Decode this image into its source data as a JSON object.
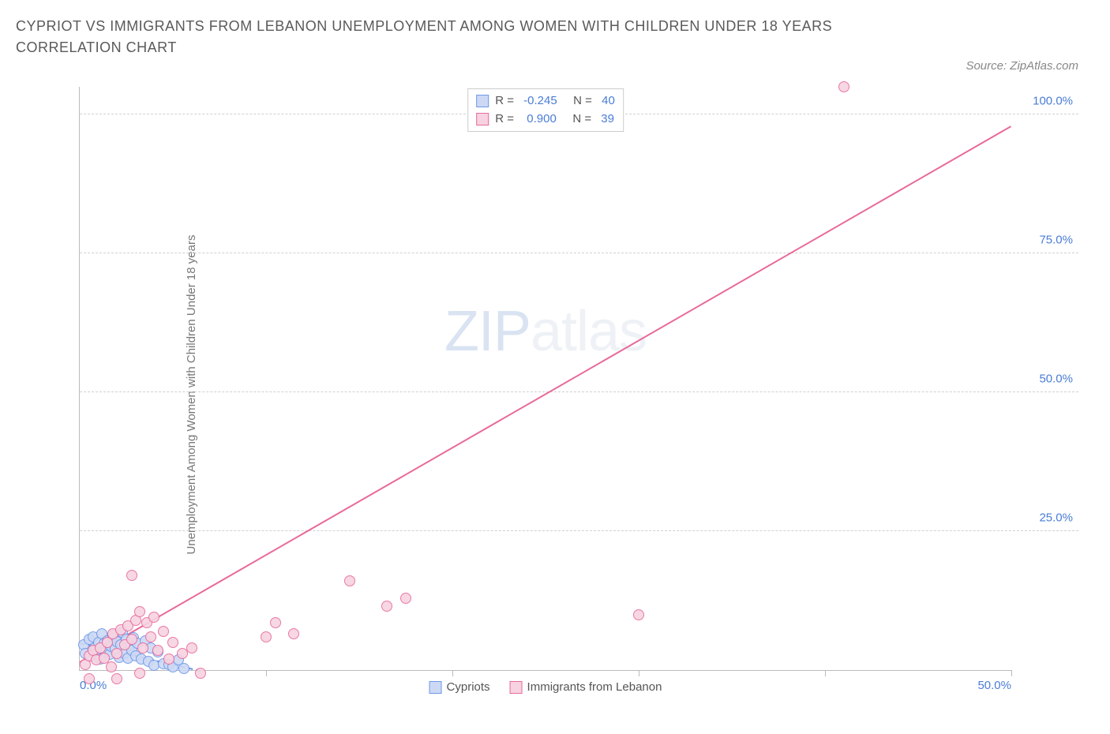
{
  "title": "CYPRIOT VS IMMIGRANTS FROM LEBANON UNEMPLOYMENT AMONG WOMEN WITH CHILDREN UNDER 18 YEARS CORRELATION CHART",
  "source": "Source: ZipAtlas.com",
  "yaxis_label": "Unemployment Among Women with Children Under 18 years",
  "watermark_a": "ZIP",
  "watermark_b": "atlas",
  "chart": {
    "type": "scatter",
    "background_color": "#ffffff",
    "grid_color": "#d0d0d0",
    "axis_color": "#bbbbbb",
    "label_color": "#4a7dd6",
    "label_fontsize": 15,
    "xlim": [
      0,
      50
    ],
    "ylim": [
      0,
      105
    ],
    "xtick_positions": [
      0,
      10,
      20,
      30,
      40,
      50
    ],
    "xtick_labels": [
      "0.0%",
      "",
      "",
      "",
      "",
      "50.0%"
    ],
    "ytick_positions": [
      25,
      50,
      75,
      100
    ],
    "ytick_labels": [
      "25.0%",
      "50.0%",
      "75.0%",
      "100.0%"
    ],
    "marker_radius": 7,
    "marker_stroke_width": 1.5,
    "marker_fill_opacity": 0.18
  },
  "series": [
    {
      "name": "Cypriots",
      "stroke": "#6f98e8",
      "fill": "#cdd9f4",
      "r_label": "R = ",
      "r_value": "-0.245",
      "n_label": "   N = ",
      "n_value": "40",
      "trend": {
        "x1": 0,
        "y1": 5.0,
        "x2": 6.5,
        "y2": 0,
        "dashed": true
      },
      "points": [
        [
          0.2,
          4.5
        ],
        [
          0.3,
          3.0
        ],
        [
          0.5,
          5.5
        ],
        [
          0.6,
          2.5
        ],
        [
          0.7,
          6.0
        ],
        [
          0.8,
          4.0
        ],
        [
          0.9,
          3.5
        ],
        [
          1.0,
          5.0
        ],
        [
          1.1,
          2.0
        ],
        [
          1.2,
          6.5
        ],
        [
          1.3,
          4.8
        ],
        [
          1.4,
          3.2
        ],
        [
          1.5,
          5.3
        ],
        [
          1.6,
          2.8
        ],
        [
          1.7,
          4.2
        ],
        [
          1.8,
          6.2
        ],
        [
          1.9,
          3.8
        ],
        [
          2.0,
          5.1
        ],
        [
          2.1,
          2.3
        ],
        [
          2.2,
          4.6
        ],
        [
          2.3,
          6.8
        ],
        [
          2.4,
          3.0
        ],
        [
          2.5,
          5.6
        ],
        [
          2.6,
          2.1
        ],
        [
          2.7,
          4.4
        ],
        [
          2.8,
          3.6
        ],
        [
          2.9,
          5.8
        ],
        [
          3.0,
          2.6
        ],
        [
          3.1,
          4.9
        ],
        [
          3.3,
          2.0
        ],
        [
          3.5,
          5.2
        ],
        [
          3.7,
          1.5
        ],
        [
          3.8,
          4.0
        ],
        [
          4.0,
          0.8
        ],
        [
          4.2,
          3.3
        ],
        [
          4.5,
          1.2
        ],
        [
          4.8,
          1.0
        ],
        [
          5.0,
          0.5
        ],
        [
          5.3,
          1.8
        ],
        [
          5.6,
          0.3
        ]
      ]
    },
    {
      "name": "Immigrants from Lebanon",
      "stroke": "#e86a9a",
      "fill": "#f7d3e1",
      "r_label": "R = ",
      "r_value": " 0.900",
      "n_label": "   N = ",
      "n_value": "39",
      "trend": {
        "x1": 0,
        "y1": 1.5,
        "x2": 50,
        "y2": 98,
        "dashed": false
      },
      "points": [
        [
          0.3,
          1.0
        ],
        [
          0.5,
          2.5
        ],
        [
          0.7,
          3.5
        ],
        [
          0.9,
          1.8
        ],
        [
          1.1,
          4.0
        ],
        [
          1.3,
          2.2
        ],
        [
          1.5,
          5.0
        ],
        [
          1.7,
          0.5
        ],
        [
          1.8,
          6.5
        ],
        [
          2.0,
          3.0
        ],
        [
          2.2,
          7.2
        ],
        [
          2.4,
          4.5
        ],
        [
          2.6,
          8.0
        ],
        [
          2.8,
          5.5
        ],
        [
          3.0,
          9.0
        ],
        [
          3.2,
          10.5
        ],
        [
          3.4,
          4.0
        ],
        [
          3.6,
          8.5
        ],
        [
          3.8,
          6.0
        ],
        [
          4.0,
          9.5
        ],
        [
          4.2,
          3.5
        ],
        [
          4.5,
          7.0
        ],
        [
          4.8,
          2.0
        ],
        [
          5.0,
          5.0
        ],
        [
          5.5,
          3.0
        ],
        [
          6.0,
          4.0
        ],
        [
          6.5,
          -0.5
        ],
        [
          2.8,
          17.0
        ],
        [
          3.2,
          -0.5
        ],
        [
          0.5,
          -1.5
        ],
        [
          10.0,
          6.0
        ],
        [
          10.5,
          8.5
        ],
        [
          11.5,
          6.5
        ],
        [
          14.5,
          16.0
        ],
        [
          16.5,
          11.5
        ],
        [
          17.5,
          13.0
        ],
        [
          30.0,
          10.0
        ],
        [
          41.0,
          105.0
        ],
        [
          2.0,
          -1.5
        ]
      ]
    }
  ],
  "legend_bottom": [
    {
      "label": "Cypriots",
      "series": 0
    },
    {
      "label": "Immigrants from Lebanon",
      "series": 1
    }
  ]
}
